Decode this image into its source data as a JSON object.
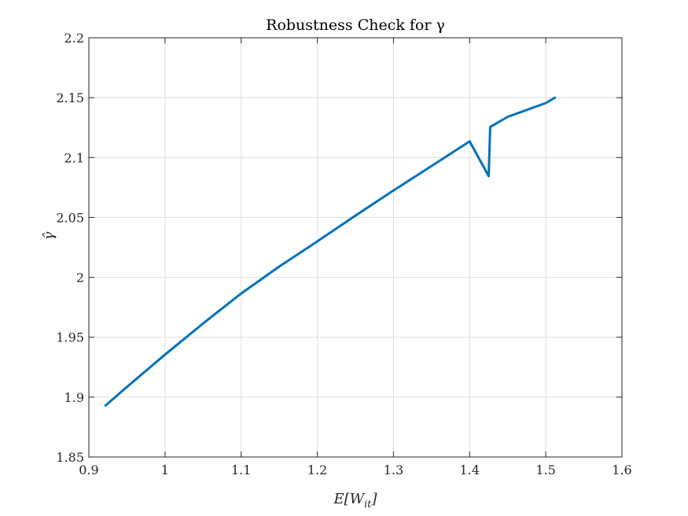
{
  "chart_data": {
    "type": "line",
    "title": "Robustness Check for γ",
    "xlabel": "E[W",
    "xlabel_sub": "it",
    "xlabel_close": "]",
    "ylabel": "γ̂",
    "xlim": [
      0.9,
      1.6
    ],
    "ylim": [
      1.85,
      2.2
    ],
    "x_ticks": [
      0.9,
      1.0,
      1.1,
      1.2,
      1.3,
      1.4,
      1.5,
      1.6
    ],
    "x_tick_labels": [
      "0.9",
      "1",
      "1.1",
      "1.2",
      "1.3",
      "1.4",
      "1.5",
      "1.6"
    ],
    "y_ticks": [
      1.85,
      1.9,
      1.95,
      2.0,
      2.05,
      2.1,
      2.15,
      2.2
    ],
    "y_tick_labels": [
      "1.85",
      "1.9",
      "1.95",
      "2",
      "2.05",
      "2.1",
      "2.15",
      "2.2"
    ],
    "grid": true,
    "series": [
      {
        "color": "#0072BD",
        "x": [
          0.922,
          0.95,
          1.0,
          1.05,
          1.1,
          1.15,
          1.2,
          1.25,
          1.3,
          1.35,
          1.4,
          1.425,
          1.427,
          1.45,
          1.5,
          1.512
        ],
        "y": [
          1.893,
          1.9085,
          1.9355,
          1.9615,
          1.9865,
          2.009,
          2.03,
          2.0515,
          2.0725,
          2.093,
          2.1135,
          2.0845,
          2.1255,
          2.134,
          2.1455,
          2.15
        ]
      }
    ]
  }
}
